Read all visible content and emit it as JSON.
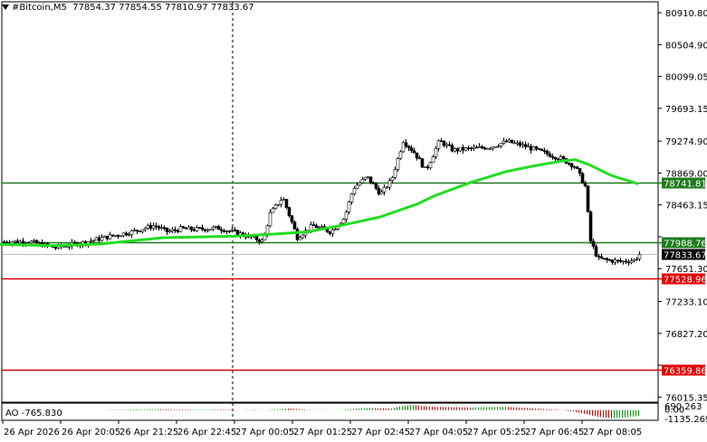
{
  "header": {
    "symbol": "#Bitcoin,M5",
    "ohlc": "77854.37 77854.55 77810.97 77833.67"
  },
  "indicator": {
    "name": "AO",
    "value": "-765.830",
    "axis_labels": [
      "690.263",
      "0.00",
      "-1135.269"
    ]
  },
  "price_axis": {
    "ticks": [
      "80910.80",
      "80504.90",
      "80099.05",
      "79693.15",
      "79274.90",
      "78869.00",
      "78463.15",
      "78057.25",
      "77651.30",
      "77233.10",
      "76827.20",
      "76421.30",
      "76015.35"
    ]
  },
  "time_axis": {
    "labels": [
      "26 Apr 2026",
      "26 Apr 20:05",
      "26 Apr 21:25",
      "26 Apr 22:45",
      "27 Apr 00:05",
      "27 Apr 01:25",
      "27 Apr 02:45",
      "27 Apr 04:05",
      "27 Apr 05:25",
      "27 Apr 06:45",
      "27 Apr 08:05"
    ]
  },
  "levels": [
    {
      "label": "78741.81",
      "color": "#1e7b1e",
      "value": 78741.81
    },
    {
      "label": "77988.76",
      "color": "#1e7b1e",
      "value": 77988.76
    },
    {
      "label": "77528.96",
      "color": "#e00000",
      "value": 77528.96
    },
    {
      "label": "76359.86",
      "color": "#e00000",
      "value": 76359.86
    }
  ],
  "current_price": {
    "label": "77833.67",
    "value": 77833.67
  },
  "colors": {
    "ma": "#22dd22",
    "candles": "#000000",
    "ao_up": "#0a9a0a",
    "ao_down": "#cc0000",
    "grid": "#000000"
  },
  "chart_data": {
    "type": "candlestick",
    "symbol": "#Bitcoin",
    "timeframe": "M5",
    "yrange": [
      75950,
      81050
    ],
    "close_path": [
      [
        0,
        77990
      ],
      [
        30,
        78000
      ],
      [
        60,
        77920
      ],
      [
        90,
        77980
      ],
      [
        120,
        78060
      ],
      [
        145,
        78120
      ],
      [
        170,
        78200
      ],
      [
        185,
        78120
      ],
      [
        200,
        78160
      ],
      [
        215,
        78150
      ],
      [
        240,
        78170
      ],
      [
        260,
        78110
      ],
      [
        275,
        78060
      ],
      [
        290,
        78000
      ],
      [
        298,
        78350
      ],
      [
        312,
        78560
      ],
      [
        328,
        78050
      ],
      [
        345,
        78200
      ],
      [
        365,
        78120
      ],
      [
        380,
        78300
      ],
      [
        390,
        78680
      ],
      [
        405,
        78820
      ],
      [
        420,
        78600
      ],
      [
        432,
        78780
      ],
      [
        445,
        79280
      ],
      [
        458,
        79120
      ],
      [
        470,
        78900
      ],
      [
        485,
        79280
      ],
      [
        500,
        79160
      ],
      [
        520,
        79180
      ],
      [
        540,
        79200
      ],
      [
        560,
        79270
      ],
      [
        580,
        79210
      ],
      [
        600,
        79130
      ],
      [
        620,
        79050
      ],
      [
        635,
        78950
      ],
      [
        646,
        78700
      ],
      [
        652,
        78000
      ],
      [
        660,
        77780
      ],
      [
        670,
        77760
      ],
      [
        685,
        77740
      ],
      [
        700,
        77760
      ],
      [
        706,
        77834
      ]
    ],
    "ma_path": [
      [
        0,
        77960
      ],
      [
        60,
        77945
      ],
      [
        110,
        77965
      ],
      [
        180,
        78045
      ],
      [
        260,
        78065
      ],
      [
        300,
        78090
      ],
      [
        340,
        78120
      ],
      [
        380,
        78210
      ],
      [
        420,
        78310
      ],
      [
        460,
        78470
      ],
      [
        480,
        78580
      ],
      [
        520,
        78750
      ],
      [
        560,
        78890
      ],
      [
        590,
        78960
      ],
      [
        620,
        79020
      ],
      [
        635,
        79040
      ],
      [
        650,
        78980
      ],
      [
        675,
        78840
      ],
      [
        705,
        78730
      ]
    ],
    "ao_values": [
      [
        120,
        40
      ],
      [
        140,
        70
      ],
      [
        160,
        110
      ],
      [
        175,
        140
      ],
      [
        190,
        100
      ],
      [
        210,
        60
      ],
      [
        240,
        80
      ],
      [
        260,
        50
      ],
      [
        280,
        -60
      ],
      [
        300,
        70
      ],
      [
        315,
        200
      ],
      [
        325,
        180
      ],
      [
        340,
        40
      ],
      [
        360,
        -30
      ],
      [
        380,
        60
      ],
      [
        395,
        220
      ],
      [
        410,
        280
      ],
      [
        430,
        200
      ],
      [
        445,
        580
      ],
      [
        455,
        690
      ],
      [
        465,
        560
      ],
      [
        480,
        430
      ],
      [
        500,
        390
      ],
      [
        520,
        360
      ],
      [
        540,
        400
      ],
      [
        560,
        420
      ],
      [
        580,
        300
      ],
      [
        600,
        150
      ],
      [
        615,
        60
      ],
      [
        630,
        -140
      ],
      [
        645,
        -500
      ],
      [
        660,
        -900
      ],
      [
        675,
        -1100
      ],
      [
        690,
        -1000
      ],
      [
        705,
        -770
      ]
    ]
  }
}
